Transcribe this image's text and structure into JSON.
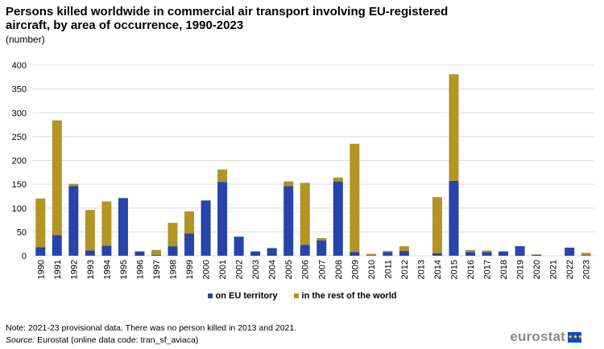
{
  "title": "Persons killed worldwide in commercial air transport involving EU-registered aircraft, by area of occurrence, 1990-2023",
  "subtitle": "(number)",
  "note_prefix": "Note:",
  "note_text": " 2021-23 provisional data. There was no person killed in 2013 and 2021.",
  "source_prefix": "Source:",
  "source_text": " Eurostat (online data code: tran_sf_aviaca)",
  "logo_text": "eurostat",
  "colors": {
    "eu": "#2644a9",
    "world": "#b39424",
    "grid": "#dddddd"
  },
  "chart_data": {
    "type": "bar",
    "stacked": true,
    "categories": [
      "1990",
      "1991",
      "1992",
      "1993",
      "1994",
      "1995",
      "1996",
      "1997",
      "1998",
      "1999",
      "2000",
      "2001",
      "2002",
      "2003",
      "2004",
      "2005",
      "2006",
      "2007",
      "2008",
      "2009",
      "2010",
      "2011",
      "2012",
      "2013",
      "2014",
      "2015",
      "2016",
      "2017",
      "2018",
      "2019",
      "2020",
      "2021",
      "2022",
      "2023"
    ],
    "series": [
      {
        "name": "on EU territory",
        "color": "#2644a9",
        "values": [
          18,
          43,
          146,
          11,
          21,
          121,
          9,
          2,
          20,
          47,
          116,
          155,
          40,
          9,
          16,
          146,
          23,
          32,
          156,
          8,
          1,
          8,
          10,
          0,
          5,
          157,
          8,
          8,
          9,
          20,
          2,
          0,
          17,
          1
        ]
      },
      {
        "name": "in the rest of the world",
        "color": "#b39424",
        "values": [
          102,
          241,
          5,
          85,
          93,
          0,
          0,
          10,
          49,
          46,
          0,
          26,
          0,
          0,
          0,
          10,
          130,
          5,
          8,
          227,
          3,
          2,
          10,
          0,
          118,
          224,
          4,
          3,
          0,
          0,
          1,
          0,
          0,
          5
        ]
      }
    ],
    "ylim": [
      0,
      400
    ],
    "yticks": [
      0,
      50,
      100,
      150,
      200,
      250,
      300,
      350,
      400
    ],
    "grid": true,
    "legend": "bottom"
  }
}
